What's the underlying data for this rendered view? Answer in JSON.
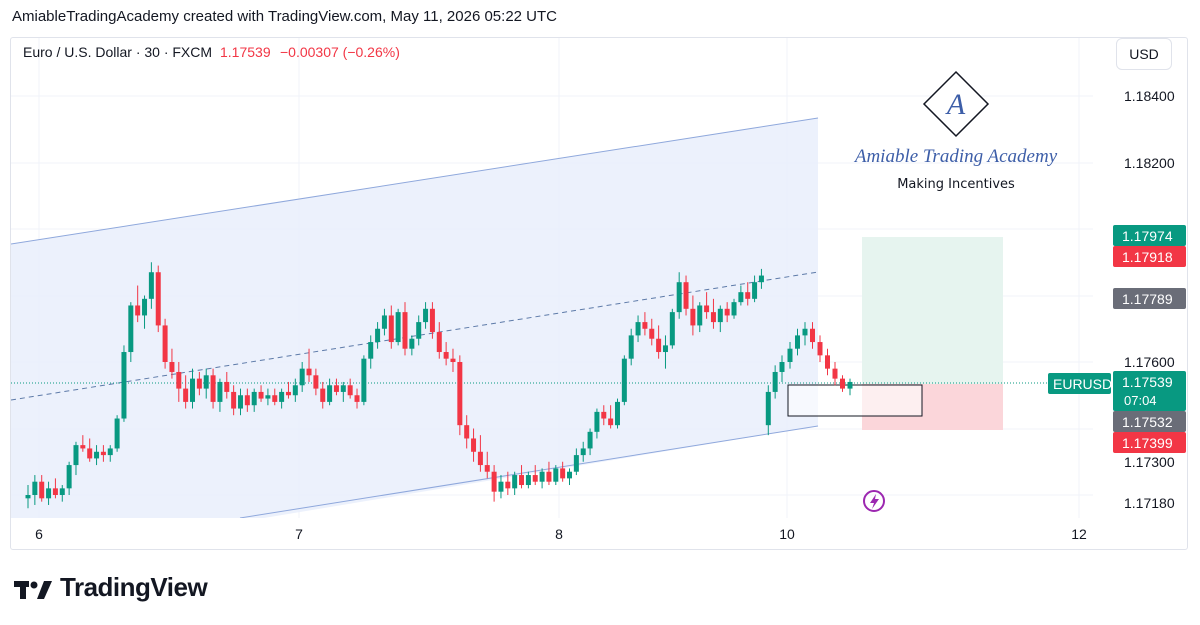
{
  "header": {
    "attribution": "AmiableTradingAcademy created with TradingView.com, May 11, 2026 05:22 UTC"
  },
  "legend": {
    "symbol": "Euro / U.S. Dollar · 30 · FXCM",
    "price": "1.17539",
    "change": "−0.00307 (−0.26%)"
  },
  "currency_button": "USD",
  "watermark": {
    "brand": "Amiable Trading Academy",
    "tagline": "Making Incentives",
    "monogram": "A"
  },
  "footer": {
    "brand": "TradingView"
  },
  "colors": {
    "up": "#089981",
    "down": "#f23645",
    "channel": "#e9eefc",
    "channel_line": "#8fa8dc",
    "target_zone": "#e6f4ef",
    "stop_zone": "#fbd6da",
    "text_down": "#f23645"
  },
  "chart_data": {
    "type": "candlestick",
    "symbol": "EURUSD",
    "timeframe": "30",
    "y_ticks": [
      "1.18400",
      "1.18200",
      "1.17600",
      "1.17300",
      "1.17180"
    ],
    "x_ticks": [
      "6",
      "7",
      "8",
      "10",
      "12"
    ],
    "price_labels": [
      {
        "text": "1.17974",
        "kind": "target"
      },
      {
        "text": "1.17918",
        "kind": "down"
      },
      {
        "text": "1.17789",
        "kind": "gray"
      },
      {
        "text": "1.17539",
        "kind": "current",
        "countdown": "07:04",
        "tag": "EURUSD"
      },
      {
        "text": "1.17532",
        "kind": "gray"
      },
      {
        "text": "1.17399",
        "kind": "stop"
      }
    ],
    "candles": [
      [
        1.1719,
        1.1723,
        1.1716,
        1.172
      ],
      [
        1.172,
        1.1726,
        1.1717,
        1.1724
      ],
      [
        1.1724,
        1.1726,
        1.1718,
        1.1719
      ],
      [
        1.1719,
        1.1724,
        1.1717,
        1.1722
      ],
      [
        1.1722,
        1.1725,
        1.1719,
        1.172
      ],
      [
        1.172,
        1.1723,
        1.1718,
        1.1722
      ],
      [
        1.1722,
        1.173,
        1.172,
        1.1729
      ],
      [
        1.1729,
        1.1736,
        1.1726,
        1.1735
      ],
      [
        1.1735,
        1.1738,
        1.1733,
        1.1734
      ],
      [
        1.1734,
        1.1737,
        1.173,
        1.1731
      ],
      [
        1.1731,
        1.1735,
        1.1729,
        1.1733
      ],
      [
        1.1733,
        1.1735,
        1.173,
        1.1732
      ],
      [
        1.1732,
        1.1735,
        1.173,
        1.1734
      ],
      [
        1.1734,
        1.1744,
        1.1733,
        1.1743
      ],
      [
        1.1743,
        1.1765,
        1.1742,
        1.1763
      ],
      [
        1.1763,
        1.1778,
        1.176,
        1.1777
      ],
      [
        1.1777,
        1.1783,
        1.1772,
        1.1774
      ],
      [
        1.1774,
        1.178,
        1.177,
        1.1779
      ],
      [
        1.1779,
        1.179,
        1.1776,
        1.1787
      ],
      [
        1.1787,
        1.1789,
        1.1769,
        1.1771
      ],
      [
        1.1771,
        1.1773,
        1.1758,
        1.176
      ],
      [
        1.176,
        1.1764,
        1.1755,
        1.1757
      ],
      [
        1.1757,
        1.176,
        1.1748,
        1.1752
      ],
      [
        1.1752,
        1.1756,
        1.1746,
        1.1748
      ],
      [
        1.1748,
        1.1758,
        1.1746,
        1.1755
      ],
      [
        1.1755,
        1.1757,
        1.175,
        1.1752
      ],
      [
        1.1752,
        1.1758,
        1.1749,
        1.1756
      ],
      [
        1.1756,
        1.1758,
        1.1746,
        1.1748
      ],
      [
        1.1748,
        1.1755,
        1.1745,
        1.1754
      ],
      [
        1.1754,
        1.1757,
        1.1749,
        1.1751
      ],
      [
        1.1751,
        1.1753,
        1.1744,
        1.1746
      ],
      [
        1.1746,
        1.1752,
        1.1744,
        1.175
      ],
      [
        1.175,
        1.1752,
        1.1745,
        1.1747
      ],
      [
        1.1747,
        1.1752,
        1.1745,
        1.1751
      ],
      [
        1.1751,
        1.1753,
        1.1748,
        1.1749
      ],
      [
        1.1749,
        1.1752,
        1.1747,
        1.175
      ],
      [
        1.175,
        1.1752,
        1.1747,
        1.1748
      ],
      [
        1.1748,
        1.1752,
        1.1746,
        1.1751
      ],
      [
        1.1751,
        1.1754,
        1.1749,
        1.175
      ],
      [
        1.175,
        1.1755,
        1.1748,
        1.1753
      ],
      [
        1.1753,
        1.176,
        1.1751,
        1.1758
      ],
      [
        1.1758,
        1.1764,
        1.1754,
        1.1756
      ],
      [
        1.1756,
        1.1758,
        1.175,
        1.1752
      ],
      [
        1.1752,
        1.1754,
        1.1746,
        1.1748
      ],
      [
        1.1748,
        1.1755,
        1.1747,
        1.1753
      ],
      [
        1.1753,
        1.1755,
        1.175,
        1.1751
      ],
      [
        1.1751,
        1.1754,
        1.1748,
        1.1753
      ],
      [
        1.1753,
        1.1755,
        1.1749,
        1.175
      ],
      [
        1.175,
        1.1752,
        1.1746,
        1.1748
      ],
      [
        1.1748,
        1.1762,
        1.1747,
        1.1761
      ],
      [
        1.1761,
        1.1768,
        1.1758,
        1.1766
      ],
      [
        1.1766,
        1.1772,
        1.1764,
        1.177
      ],
      [
        1.177,
        1.1776,
        1.1768,
        1.1774
      ],
      [
        1.1774,
        1.1777,
        1.1764,
        1.1766
      ],
      [
        1.1766,
        1.1776,
        1.1765,
        1.1775
      ],
      [
        1.1775,
        1.1778,
        1.1762,
        1.1764
      ],
      [
        1.1764,
        1.1768,
        1.1762,
        1.1767
      ],
      [
        1.1767,
        1.1774,
        1.1765,
        1.1772
      ],
      [
        1.1772,
        1.1778,
        1.177,
        1.1776
      ],
      [
        1.1776,
        1.1778,
        1.1767,
        1.1769
      ],
      [
        1.1769,
        1.1772,
        1.1761,
        1.1763
      ],
      [
        1.1763,
        1.1766,
        1.1759,
        1.1761
      ],
      [
        1.1761,
        1.1764,
        1.1757,
        1.176
      ],
      [
        1.176,
        1.1762,
        1.1738,
        1.1741
      ],
      [
        1.1741,
        1.1744,
        1.1734,
        1.1737
      ],
      [
        1.1737,
        1.174,
        1.173,
        1.1733
      ],
      [
        1.1733,
        1.1738,
        1.1727,
        1.1729
      ],
      [
        1.1729,
        1.1733,
        1.1725,
        1.1727
      ],
      [
        1.1727,
        1.1729,
        1.1718,
        1.1721
      ],
      [
        1.1721,
        1.1726,
        1.1719,
        1.1724
      ],
      [
        1.1724,
        1.1727,
        1.172,
        1.1722
      ],
      [
        1.1722,
        1.1727,
        1.172,
        1.1726
      ],
      [
        1.1726,
        1.1729,
        1.1722,
        1.1723
      ],
      [
        1.1723,
        1.1727,
        1.1722,
        1.1726
      ],
      [
        1.1726,
        1.1729,
        1.1723,
        1.1724
      ],
      [
        1.1724,
        1.1728,
        1.1722,
        1.1727
      ],
      [
        1.1727,
        1.173,
        1.1723,
        1.1724
      ],
      [
        1.1724,
        1.1729,
        1.1723,
        1.1728
      ],
      [
        1.1728,
        1.173,
        1.1724,
        1.1725
      ],
      [
        1.1725,
        1.1728,
        1.1723,
        1.1727
      ],
      [
        1.1727,
        1.1734,
        1.1726,
        1.1732
      ],
      [
        1.1732,
        1.1736,
        1.173,
        1.1734
      ],
      [
        1.1734,
        1.174,
        1.1732,
        1.1739
      ],
      [
        1.1739,
        1.1746,
        1.1737,
        1.1745
      ],
      [
        1.1745,
        1.1747,
        1.1741,
        1.1743
      ],
      [
        1.1743,
        1.1747,
        1.174,
        1.1741
      ],
      [
        1.1741,
        1.1749,
        1.174,
        1.1748
      ],
      [
        1.1748,
        1.1762,
        1.1747,
        1.1761
      ],
      [
        1.1761,
        1.177,
        1.1759,
        1.1768
      ],
      [
        1.1768,
        1.1774,
        1.1766,
        1.1772
      ],
      [
        1.1772,
        1.1775,
        1.1768,
        1.177
      ],
      [
        1.177,
        1.1773,
        1.1765,
        1.1767
      ],
      [
        1.1767,
        1.1771,
        1.1761,
        1.1763
      ],
      [
        1.1763,
        1.1768,
        1.1758,
        1.1765
      ],
      [
        1.1765,
        1.1776,
        1.1764,
        1.1775
      ],
      [
        1.1775,
        1.1787,
        1.1773,
        1.1784
      ],
      [
        1.1784,
        1.1786,
        1.1774,
        1.1776
      ],
      [
        1.1776,
        1.178,
        1.1768,
        1.1771
      ],
      [
        1.1771,
        1.1778,
        1.1769,
        1.1777
      ],
      [
        1.1777,
        1.1781,
        1.1773,
        1.1775
      ],
      [
        1.1775,
        1.1779,
        1.177,
        1.1772
      ],
      [
        1.1772,
        1.1777,
        1.1769,
        1.1776
      ],
      [
        1.1776,
        1.1778,
        1.1772,
        1.1774
      ],
      [
        1.1774,
        1.1779,
        1.1773,
        1.1778
      ],
      [
        1.1778,
        1.1783,
        1.1777,
        1.1781
      ],
      [
        1.1781,
        1.1784,
        1.1777,
        1.1779
      ],
      [
        1.1779,
        1.1786,
        1.1778,
        1.1784
      ],
      [
        1.1784,
        1.1788,
        1.1782,
        1.1786
      ],
      [
        1.1741,
        1.1753,
        1.1738,
        1.1751
      ],
      [
        1.1751,
        1.1759,
        1.1749,
        1.1757
      ],
      [
        1.1757,
        1.1762,
        1.1754,
        1.176
      ],
      [
        1.176,
        1.1766,
        1.1758,
        1.1764
      ],
      [
        1.1764,
        1.177,
        1.1762,
        1.1768
      ],
      [
        1.1768,
        1.1772,
        1.1765,
        1.177
      ],
      [
        1.177,
        1.1772,
        1.1764,
        1.1766
      ],
      [
        1.1766,
        1.1768,
        1.176,
        1.1762
      ],
      [
        1.1762,
        1.1764,
        1.1756,
        1.1758
      ],
      [
        1.1758,
        1.176,
        1.1753,
        1.1755
      ],
      [
        1.1755,
        1.1756,
        1.1751,
        1.1752
      ],
      [
        1.1752,
        1.1755,
        1.175,
        1.1754
      ]
    ]
  }
}
